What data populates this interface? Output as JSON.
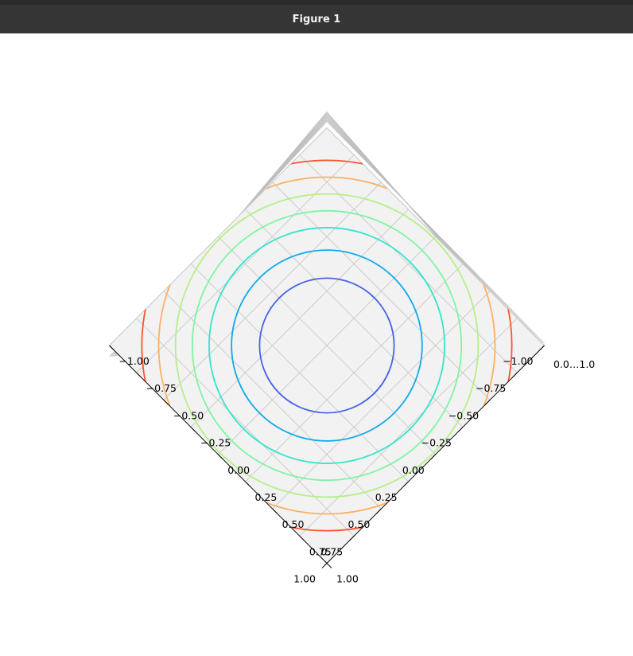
{
  "window": {
    "title": "Figure 1"
  },
  "chart_data": {
    "type": "contour3d",
    "title": "",
    "view": "top-down, rotated 45 degrees",
    "xlim": [
      -1.0,
      1.0
    ],
    "ylim": [
      -1.0,
      1.0
    ],
    "x_ticks": [
      "−1.00",
      "−0.75",
      "−0.50",
      "−0.25",
      "0.00",
      "0.25",
      "0.50",
      "0.75",
      "1.00"
    ],
    "y_ticks": [
      "1.00",
      "0.75",
      "0.50",
      "0.25",
      "0.00",
      "−0.25",
      "−0.50",
      "−0.75",
      "−1.00"
    ],
    "z_tick_label": "0.0…1.0",
    "grid": true,
    "contours": [
      {
        "radius": 0.6,
        "color": "#4864e6"
      },
      {
        "radius": 0.85,
        "color": "#11a9e8"
      },
      {
        "radius": 1.05,
        "color": "#33e5cc"
      },
      {
        "radius": 1.2,
        "color": "#7ef5a0"
      },
      {
        "radius": 1.35,
        "color": "#b6ef86"
      },
      {
        "radius": 1.5,
        "color": "#ffb061"
      },
      {
        "radius": 1.65,
        "color": "#f8552e"
      }
    ]
  }
}
